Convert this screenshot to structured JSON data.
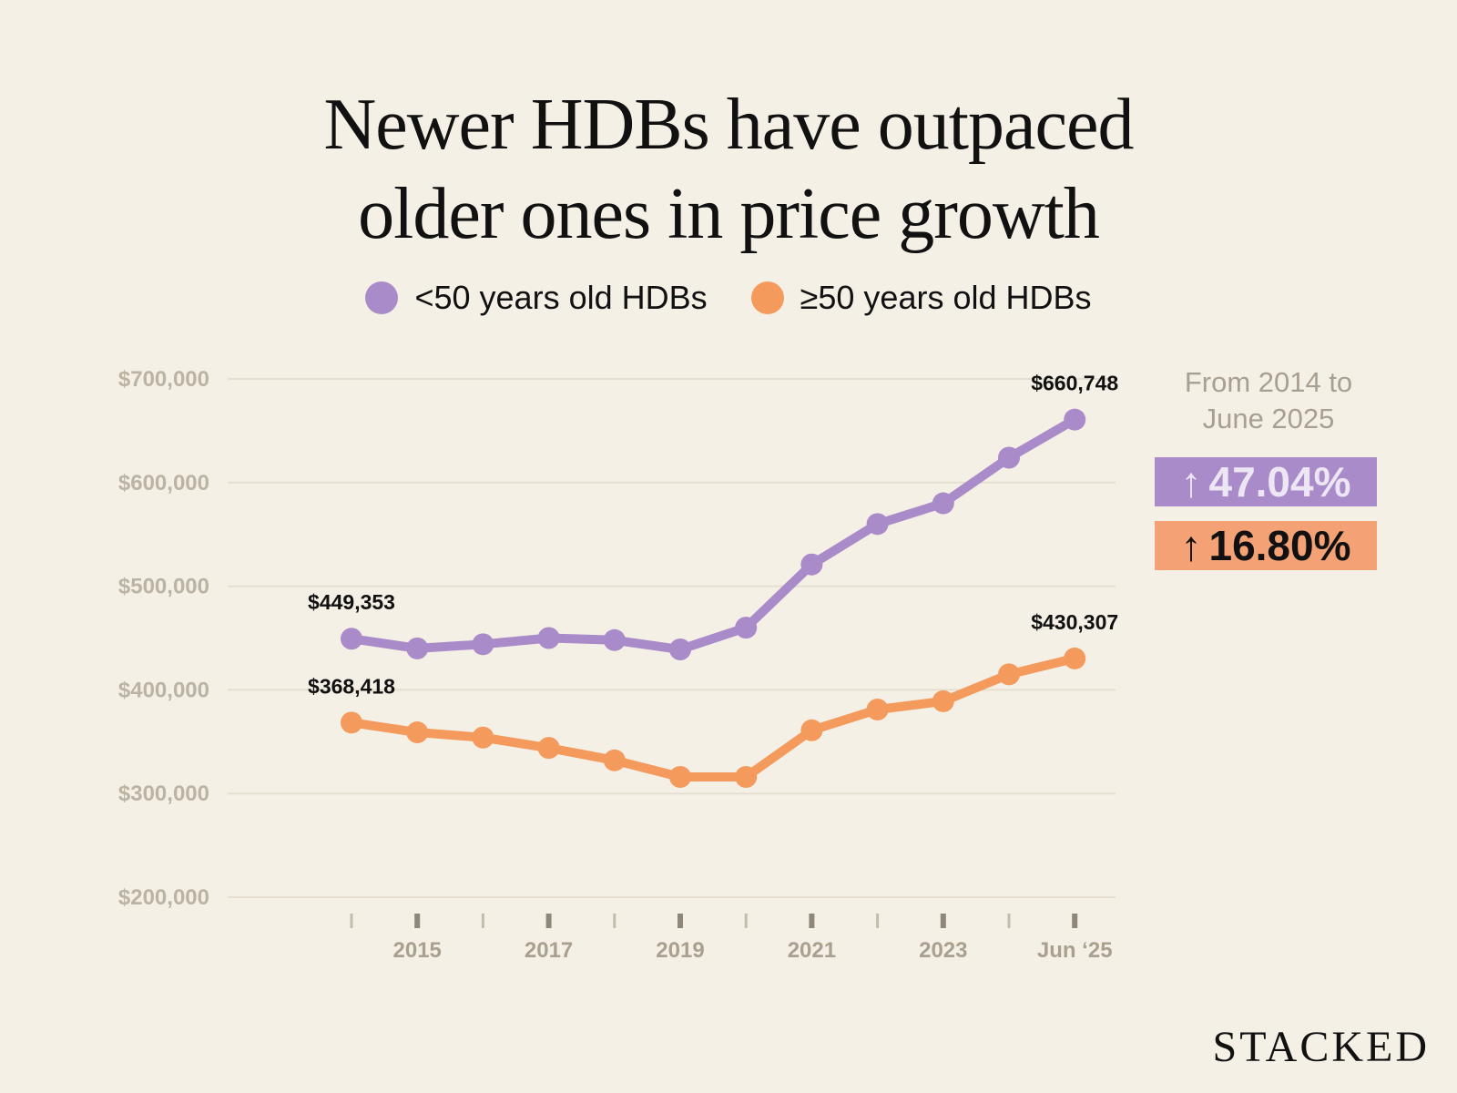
{
  "title": {
    "line1": "Newer HDBs have outpaced",
    "line2": "older ones in price growth"
  },
  "legend": [
    {
      "label": "<50 years old HDBs",
      "color": "#a98bc9"
    },
    {
      "label": "≥50 years old HDBs",
      "color": "#f49a5c"
    }
  ],
  "side_note": {
    "line1": "From 2014 to",
    "line2": "June 2025"
  },
  "badges": [
    {
      "arrow": "↑",
      "text": "47.04%",
      "color": "#a98bc9"
    },
    {
      "arrow": "↑",
      "text": "16.80%",
      "color": "#f4a275"
    }
  ],
  "brand": "STACKED",
  "chart_data": {
    "type": "line",
    "title": "Newer HDBs have outpaced older ones in price growth",
    "x": [
      "2014",
      "2015",
      "2016",
      "2017",
      "2018",
      "2019",
      "2020",
      "2021",
      "2022",
      "2023",
      "2024",
      "Jun '25"
    ],
    "x_tick_labels": [
      "",
      "2015",
      "",
      "2017",
      "",
      "2019",
      "",
      "2021",
      "",
      "2023",
      "",
      "Jun ‘25"
    ],
    "ylim": [
      200000,
      700000
    ],
    "y_ticks": [
      200000,
      300000,
      400000,
      500000,
      600000,
      700000
    ],
    "y_tick_labels": [
      "$200,000",
      "$300,000",
      "$400,000",
      "$500,000",
      "$600,000",
      "$700,000"
    ],
    "grid": true,
    "series": [
      {
        "name": "<50 years old HDBs",
        "color": "#a98bc9",
        "values": [
          449353,
          440000,
          444000,
          450000,
          448000,
          439000,
          460000,
          521000,
          560000,
          580000,
          624000,
          660748
        ],
        "labels": [
          {
            "index": 0,
            "text": "$449,353"
          },
          {
            "index": 11,
            "text": "$660,748"
          }
        ]
      },
      {
        "name": "≥50 years old HDBs",
        "color": "#f49a5c",
        "values": [
          368418,
          359000,
          354000,
          344000,
          332000,
          316000,
          316000,
          361000,
          381000,
          389000,
          415000,
          430307
        ],
        "labels": [
          {
            "index": 0,
            "text": "$368,418"
          },
          {
            "index": 11,
            "text": "$430,307"
          }
        ]
      }
    ]
  }
}
